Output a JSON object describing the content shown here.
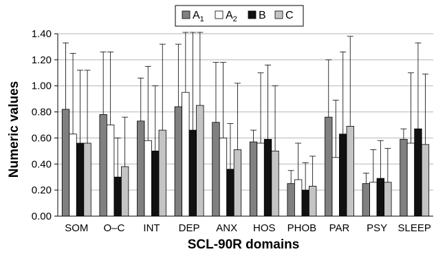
{
  "chart_data": {
    "type": "bar",
    "title": "",
    "xlabel": "SCL-90R domains",
    "ylabel": "Numeric values",
    "ylim": [
      0,
      1.4
    ],
    "yticks": [
      "0.00",
      "0.20",
      "0.40",
      "0.60",
      "0.80",
      "1.00",
      "1.20",
      "1.40"
    ],
    "grid": "horizontal",
    "legend_position": "top",
    "error_bars": "upper",
    "categories": [
      "SOM",
      "O–C",
      "INT",
      "DEP",
      "ANX",
      "HOS",
      "PHOB",
      "PAR",
      "PSY",
      "SLEEP"
    ],
    "series": [
      {
        "name": "A",
        "subscript": "1",
        "color": "#808080",
        "values": [
          0.82,
          0.78,
          0.73,
          0.84,
          0.72,
          0.57,
          0.25,
          0.76,
          0.25,
          0.59
        ],
        "errors": [
          0.51,
          0.48,
          0.33,
          0.48,
          0.46,
          0.09,
          0.1,
          0.44,
          0.08,
          0.08
        ]
      },
      {
        "name": "A",
        "subscript": "2",
        "color": "#ffffff",
        "values": [
          0.63,
          0.7,
          0.58,
          0.95,
          0.6,
          0.56,
          0.28,
          0.45,
          0.26,
          0.56
        ],
        "errors": [
          0.62,
          0.56,
          0.57,
          0.5,
          0.58,
          0.54,
          0.28,
          0.44,
          0.25,
          0.54
        ]
      },
      {
        "name": "B",
        "subscript": "",
        "color": "#111111",
        "values": [
          0.56,
          0.3,
          0.5,
          0.66,
          0.36,
          0.59,
          0.2,
          0.63,
          0.29,
          0.67
        ],
        "errors": [
          0.56,
          0.3,
          0.5,
          0.8,
          0.35,
          0.57,
          0.21,
          0.63,
          0.29,
          0.66
        ]
      },
      {
        "name": "C",
        "subscript": "",
        "color": "#c4c4c4",
        "values": [
          0.56,
          0.38,
          0.66,
          0.85,
          0.51,
          0.5,
          0.23,
          0.69,
          0.26,
          0.55
        ],
        "errors": [
          0.56,
          0.38,
          0.66,
          0.6,
          0.51,
          0.5,
          0.23,
          0.69,
          0.26,
          0.54
        ]
      }
    ]
  }
}
